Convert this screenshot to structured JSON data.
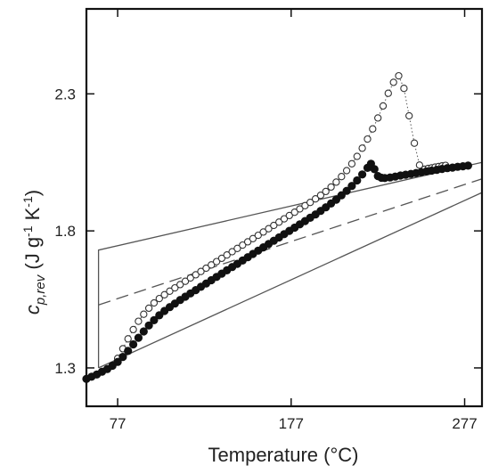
{
  "chart_data": {
    "type": "scatter",
    "xlabel": "Temperature (°C)",
    "ylabel": {
      "base": "c",
      "subscript": "p,rev",
      "unit_open": " (J g",
      "exp1": "-1",
      "unit_mid": " K",
      "exp2": "-1",
      "unit_close": ")"
    },
    "xlim": [
      59,
      287
    ],
    "ylim": [
      1.16,
      2.61
    ],
    "xticks": [
      77,
      177,
      277
    ],
    "xtick_labels": [
      "77",
      "177",
      "277"
    ],
    "yticks": [
      1.3,
      1.8,
      2.3
    ],
    "ytick_labels": [
      "1.3",
      "1.8",
      "2.3"
    ],
    "grid": false,
    "legend": "none",
    "series": [
      {
        "marker": "filled-circle",
        "color": "#111111",
        "x": [
          59,
          62,
          65,
          68,
          71,
          74,
          77,
          80,
          83,
          86,
          89,
          92,
          95,
          98,
          101,
          104,
          107,
          110,
          113,
          116,
          119,
          122,
          125,
          128,
          131,
          134,
          137,
          140,
          143,
          146,
          149,
          152,
          155,
          158,
          161,
          164,
          167,
          170,
          173,
          176,
          179,
          182,
          185,
          188,
          191,
          194,
          197,
          200,
          203,
          206,
          209,
          212,
          215,
          218,
          221,
          223,
          225,
          227,
          229,
          231,
          234,
          237,
          240,
          243,
          246,
          249,
          252,
          255,
          258,
          261,
          264,
          267,
          270,
          273,
          276,
          279
        ],
        "y": [
          1.26,
          1.268,
          1.276,
          1.286,
          1.296,
          1.308,
          1.322,
          1.34,
          1.362,
          1.386,
          1.41,
          1.433,
          1.455,
          1.474,
          1.492,
          1.508,
          1.522,
          1.535,
          1.548,
          1.56,
          1.572,
          1.584,
          1.596,
          1.608,
          1.62,
          1.632,
          1.644,
          1.656,
          1.668,
          1.68,
          1.692,
          1.704,
          1.716,
          1.728,
          1.74,
          1.752,
          1.764,
          1.776,
          1.788,
          1.8,
          1.812,
          1.824,
          1.836,
          1.848,
          1.86,
          1.873,
          1.886,
          1.9,
          1.914,
          1.93,
          1.946,
          1.964,
          1.984,
          2.006,
          2.03,
          2.045,
          2.025,
          2.0,
          1.994,
          1.993,
          1.995,
          1.998,
          2.002,
          2.005,
          2.008,
          2.011,
          2.014,
          2.017,
          2.02,
          2.023,
          2.026,
          2.029,
          2.031,
          2.034,
          2.036,
          2.038
        ]
      },
      {
        "marker": "open-circle",
        "color": "#333333",
        "connector": "dotted",
        "x": [
          77,
          80,
          83,
          86,
          89,
          92,
          95,
          98,
          101,
          104,
          107,
          110,
          113,
          116,
          119,
          122,
          125,
          128,
          131,
          134,
          137,
          140,
          143,
          146,
          149,
          152,
          155,
          158,
          161,
          164,
          167,
          170,
          173,
          176,
          179,
          182,
          185,
          188,
          191,
          194,
          197,
          200,
          203,
          206,
          209,
          212,
          215,
          218,
          221,
          224,
          227,
          230,
          233,
          236,
          239,
          242,
          245,
          248,
          251,
          254,
          256,
          258,
          260,
          262,
          264,
          266
        ],
        "y": [
          1.335,
          1.37,
          1.406,
          1.44,
          1.47,
          1.496,
          1.518,
          1.537,
          1.553,
          1.567,
          1.58,
          1.592,
          1.604,
          1.616,
          1.628,
          1.64,
          1.652,
          1.664,
          1.676,
          1.688,
          1.7,
          1.712,
          1.724,
          1.736,
          1.748,
          1.76,
          1.772,
          1.784,
          1.796,
          1.808,
          1.82,
          1.832,
          1.844,
          1.856,
          1.868,
          1.88,
          1.892,
          1.904,
          1.917,
          1.93,
          1.944,
          1.96,
          1.978,
          1.998,
          2.02,
          2.045,
          2.072,
          2.102,
          2.135,
          2.172,
          2.212,
          2.256,
          2.302,
          2.342,
          2.366,
          2.32,
          2.22,
          2.12,
          2.04,
          2.025,
          2.028,
          2.03,
          2.033,
          2.035,
          2.037,
          2.039
        ]
      }
    ],
    "reference_lines": [
      {
        "style": "solid",
        "x": [
          66,
          66,
          287
        ],
        "y": [
          1.3,
          1.73,
          2.05
        ]
      },
      {
        "style": "dashed",
        "x": [
          66,
          287
        ],
        "y": [
          1.53,
          1.99
        ]
      },
      {
        "style": "solid",
        "x": [
          66,
          287
        ],
        "y": [
          1.3,
          1.94
        ]
      }
    ]
  }
}
